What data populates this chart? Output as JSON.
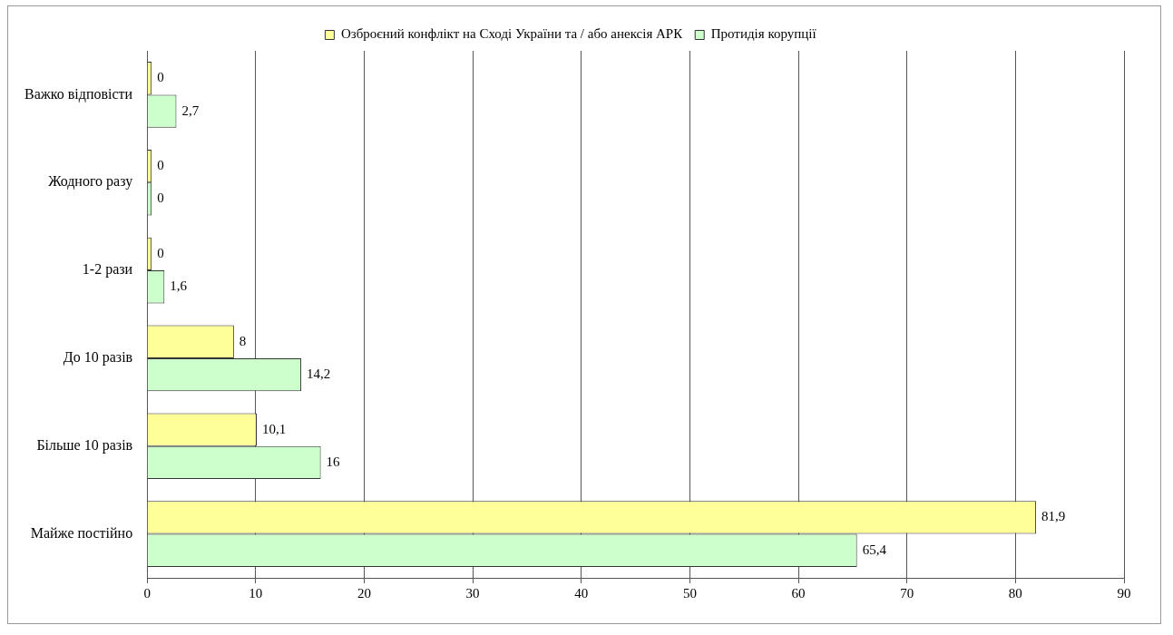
{
  "chart_data": {
    "type": "bar",
    "orientation": "horizontal",
    "categories": [
      "Важко відповісти",
      "Жодного разу",
      "1-2 рази",
      "До 10 разів",
      "Більше 10 разів",
      "Майже постійно"
    ],
    "series": [
      {
        "name": "Озброєний конфлікт на Сході України та / або анексія АРК",
        "color": "#ffff99",
        "values": [
          0,
          0,
          0,
          8,
          10.1,
          81.9
        ],
        "value_labels": [
          "0",
          "0",
          "0",
          "8",
          "10,1",
          "81,9"
        ]
      },
      {
        "name": "Протидія корупції",
        "color": "#ccffcc",
        "values": [
          2.7,
          0,
          1.6,
          14.2,
          16,
          65.4
        ],
        "value_labels": [
          "2,7",
          "0",
          "1,6",
          "14,2",
          "16",
          "65,4"
        ]
      }
    ],
    "xlim": [
      0,
      90
    ],
    "xticks": [
      0,
      10,
      20,
      30,
      40,
      50,
      60,
      70,
      80,
      90
    ],
    "grid": "x",
    "legend": "top"
  }
}
